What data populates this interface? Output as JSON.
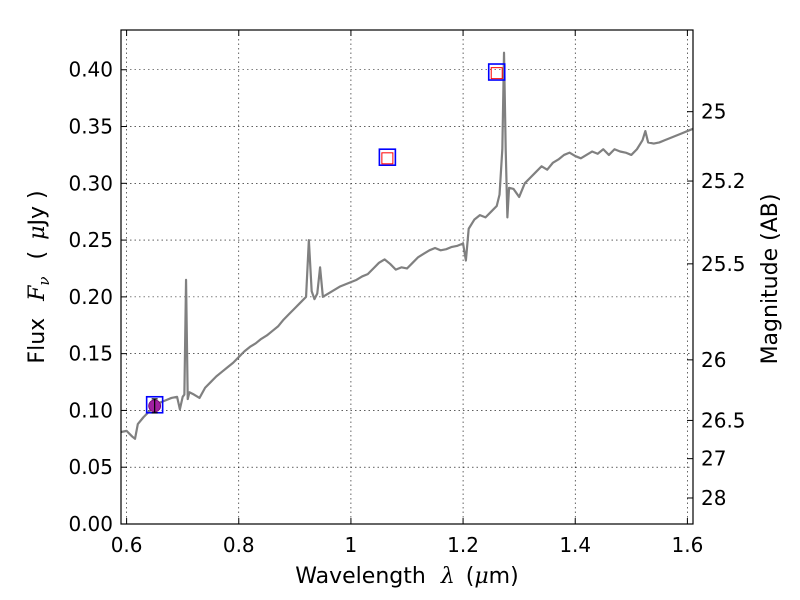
{
  "chart_data": {
    "type": "line",
    "xlabel_text": "Wavelength",
    "xlabel_symbol": "λ",
    "xlabel_unit_open": "(",
    "xlabel_unit_mu": "μ",
    "xlabel_unit_rest": "m)",
    "ylabel_text": "Flux",
    "ylabel_symbol": "F",
    "ylabel_sub": "ν",
    "ylabel_unit_open": "(",
    "ylabel_unit_mu": "μ",
    "ylabel_unit_rest": "Jy )",
    "y2label": "Magnitude (AB)",
    "xlim": [
      0.59,
      1.61
    ],
    "ylim": [
      0.0,
      0.435
    ],
    "grid": true,
    "x_ticks": [
      {
        "value": 0.6,
        "label": "0.6"
      },
      {
        "value": 0.8,
        "label": "0.8"
      },
      {
        "value": 1.0,
        "label": "1"
      },
      {
        "value": 1.2,
        "label": "1.2"
      },
      {
        "value": 1.4,
        "label": "1.4"
      },
      {
        "value": 1.6,
        "label": "1.6"
      }
    ],
    "y_ticks": [
      {
        "value": 0.0,
        "label": "0.00"
      },
      {
        "value": 0.05,
        "label": "0.05"
      },
      {
        "value": 0.1,
        "label": "0.10"
      },
      {
        "value": 0.15,
        "label": "0.15"
      },
      {
        "value": 0.2,
        "label": "0.20"
      },
      {
        "value": 0.25,
        "label": "0.25"
      },
      {
        "value": 0.3,
        "label": "0.30"
      },
      {
        "value": 0.35,
        "label": "0.35"
      },
      {
        "value": 0.4,
        "label": "0.40"
      }
    ],
    "y2_ticks": [
      {
        "mag": 25,
        "label": "25"
      },
      {
        "mag": 25.2,
        "label": "25.2"
      },
      {
        "mag": 25.5,
        "label": "25.5"
      },
      {
        "mag": 26,
        "label": "26"
      },
      {
        "mag": 26.5,
        "label": "26.5"
      },
      {
        "mag": 27,
        "label": "27"
      },
      {
        "mag": 28,
        "label": "28"
      }
    ],
    "series": [
      {
        "color": "#808080",
        "x": [
          0.59,
          0.6,
          0.61,
          0.615,
          0.62,
          0.63,
          0.64,
          0.65,
          0.66,
          0.67,
          0.68,
          0.69,
          0.695,
          0.7,
          0.703,
          0.706,
          0.709,
          0.712,
          0.72,
          0.73,
          0.74,
          0.75,
          0.76,
          0.77,
          0.78,
          0.79,
          0.8,
          0.81,
          0.82,
          0.83,
          0.84,
          0.85,
          0.86,
          0.87,
          0.88,
          0.89,
          0.9,
          0.91,
          0.92,
          0.925,
          0.93,
          0.935,
          0.94,
          0.945,
          0.95,
          0.96,
          0.97,
          0.98,
          0.99,
          1.0,
          1.01,
          1.02,
          1.03,
          1.04,
          1.05,
          1.06,
          1.07,
          1.08,
          1.09,
          1.1,
          1.11,
          1.12,
          1.13,
          1.14,
          1.15,
          1.16,
          1.17,
          1.18,
          1.19,
          1.2,
          1.205,
          1.21,
          1.22,
          1.23,
          1.24,
          1.25,
          1.26,
          1.265,
          1.27,
          1.273,
          1.276,
          1.279,
          1.282,
          1.29,
          1.3,
          1.31,
          1.32,
          1.33,
          1.34,
          1.35,
          1.36,
          1.37,
          1.38,
          1.39,
          1.4,
          1.41,
          1.42,
          1.43,
          1.44,
          1.45,
          1.46,
          1.47,
          1.48,
          1.49,
          1.5,
          1.51,
          1.52,
          1.525,
          1.53,
          1.54,
          1.55,
          1.56,
          1.57,
          1.58,
          1.59,
          1.6,
          1.61
        ],
        "y": [
          0.081,
          0.082,
          0.077,
          0.075,
          0.088,
          0.094,
          0.099,
          0.103,
          0.107,
          0.109,
          0.111,
          0.112,
          0.101,
          0.112,
          0.114,
          0.215,
          0.11,
          0.116,
          0.114,
          0.111,
          0.12,
          0.125,
          0.13,
          0.134,
          0.138,
          0.142,
          0.147,
          0.152,
          0.156,
          0.159,
          0.163,
          0.166,
          0.17,
          0.174,
          0.18,
          0.185,
          0.19,
          0.195,
          0.2,
          0.25,
          0.205,
          0.198,
          0.203,
          0.226,
          0.2,
          0.203,
          0.206,
          0.209,
          0.211,
          0.213,
          0.215,
          0.218,
          0.22,
          0.225,
          0.23,
          0.233,
          0.229,
          0.224,
          0.226,
          0.225,
          0.23,
          0.235,
          0.238,
          0.241,
          0.243,
          0.241,
          0.242,
          0.244,
          0.245,
          0.247,
          0.232,
          0.26,
          0.268,
          0.272,
          0.27,
          0.275,
          0.28,
          0.29,
          0.33,
          0.415,
          0.33,
          0.27,
          0.296,
          0.295,
          0.288,
          0.3,
          0.305,
          0.31,
          0.315,
          0.312,
          0.318,
          0.321,
          0.325,
          0.327,
          0.324,
          0.322,
          0.325,
          0.328,
          0.326,
          0.33,
          0.325,
          0.33,
          0.328,
          0.327,
          0.325,
          0.33,
          0.338,
          0.346,
          0.336,
          0.335,
          0.336,
          0.338,
          0.34,
          0.342,
          0.344,
          0.346,
          0.348
        ]
      }
    ],
    "photometry": [
      {
        "x": 0.65,
        "y": 0.105,
        "marker": "blue-square"
      },
      {
        "x": 0.65,
        "y": 0.104,
        "marker": "purple-circle"
      },
      {
        "x": 0.65,
        "y": 0.104,
        "marker": "errorbar"
      },
      {
        "x": 1.065,
        "y": 0.323,
        "marker": "blue-square"
      },
      {
        "x": 1.065,
        "y": 0.322,
        "marker": "red-square"
      },
      {
        "x": 1.26,
        "y": 0.398,
        "marker": "blue-square"
      },
      {
        "x": 1.26,
        "y": 0.397,
        "marker": "red-square"
      }
    ]
  }
}
